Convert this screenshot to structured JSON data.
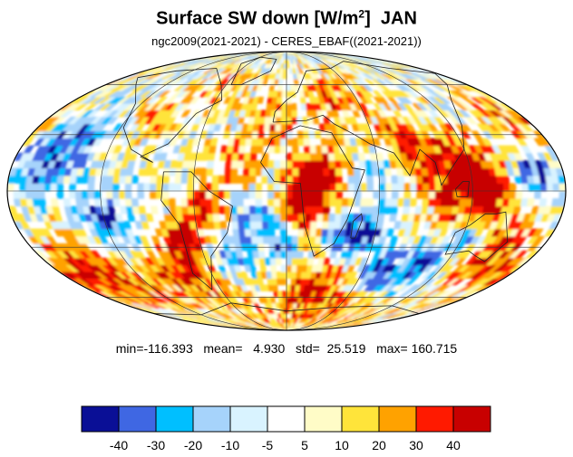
{
  "title": {
    "main": "Surface SW down [W/m",
    "superscript": "2",
    "close": "]",
    "month": "JAN"
  },
  "subtitle": "ngc2009(2021-2021) - CERES_EBAF((2021-2021))",
  "stats_text": "min=-116.393   mean=   4.930   std=  25.519   max= 160.715",
  "stats": {
    "min": -116.393,
    "mean": 4.93,
    "std": 25.519,
    "max": 160.715
  },
  "map": {
    "projection": "mollweide",
    "field": "Surface SW down difference",
    "units": "W/m2",
    "grid_lines": true,
    "coastlines": true
  },
  "colorbar": {
    "colors": [
      "#0a0f96",
      "#3f67e3",
      "#00bfff",
      "#a6d3fb",
      "#d9f3ff",
      "#ffffff",
      "#fffcc7",
      "#ffe43a",
      "#ffa200",
      "#ff1a00",
      "#c80000"
    ],
    "tick_labels": [
      "-40",
      "-30",
      "-20",
      "-10",
      "-5",
      "5",
      "10",
      "20",
      "30",
      "40"
    ],
    "levels": [
      -40,
      -30,
      -20,
      -10,
      -5,
      5,
      10,
      20,
      30,
      40
    ]
  }
}
